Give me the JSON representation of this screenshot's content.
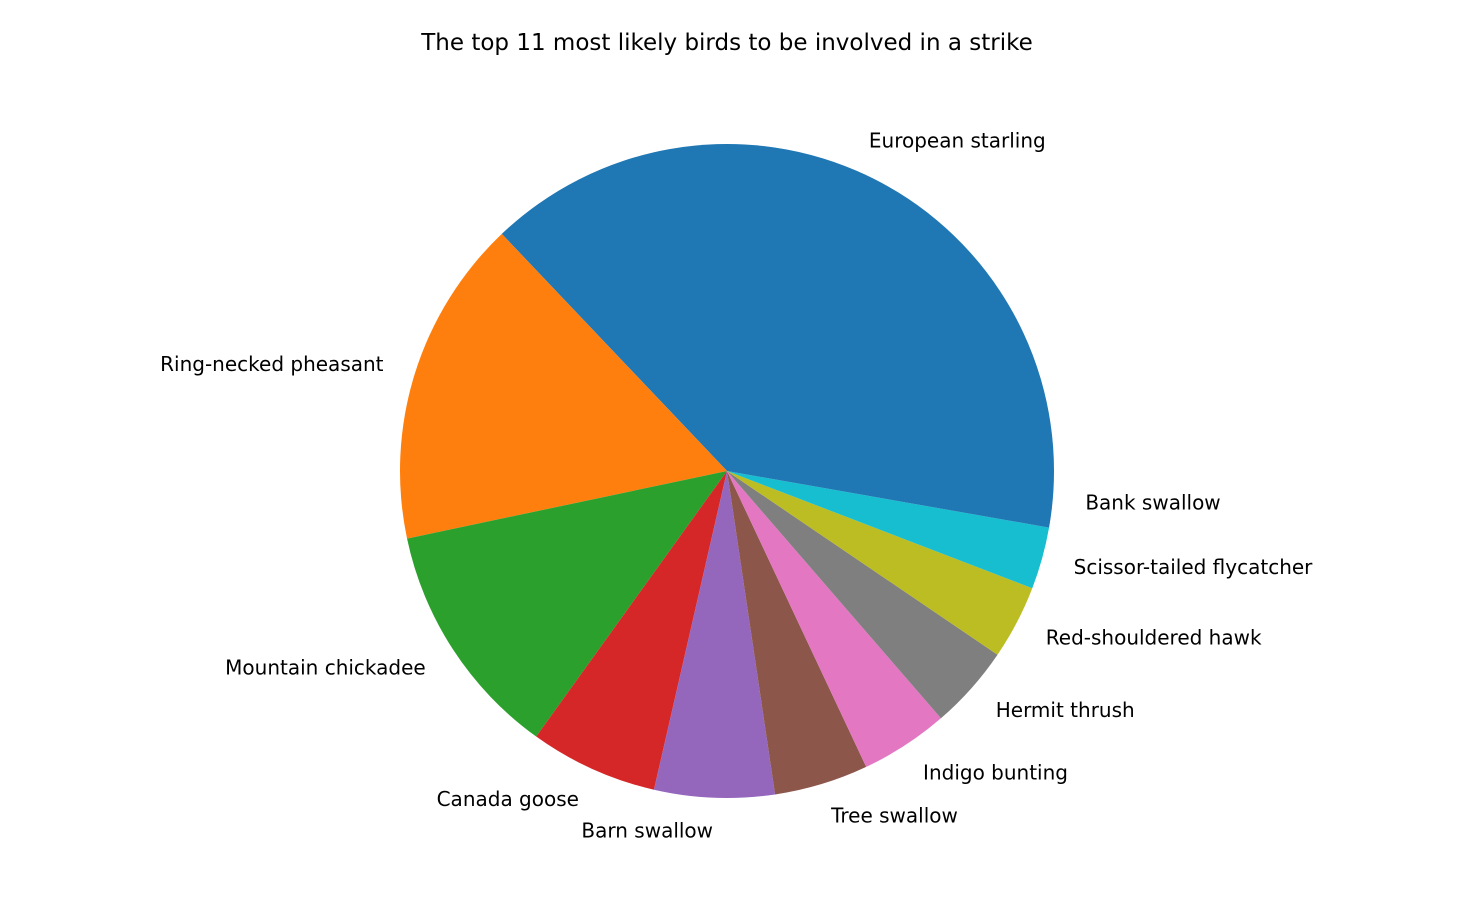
{
  "chart_data": {
    "type": "pie",
    "title": "The top 11 most likely birds to be involved in a strike",
    "start_angle_deg": 0,
    "direction": "counterclockwise",
    "slices": [
      {
        "label": "European starling",
        "value": 37.5,
        "color": "#1f77b4"
      },
      {
        "label": "Ring-necked pheasant",
        "value": 16.4,
        "color": "#ff7f0e"
      },
      {
        "label": "Mountain chickadee",
        "value": 11.9,
        "color": "#2ca02c"
      },
      {
        "label": "Canada goose",
        "value": 6.4,
        "color": "#d62728"
      },
      {
        "label": "Barn swallow",
        "value": 6.0,
        "color": "#9467bd"
      },
      {
        "label": "Tree swallow",
        "value": 4.7,
        "color": "#8c564b"
      },
      {
        "label": "Indigo bunting",
        "value": 4.4,
        "color": "#e377c2"
      },
      {
        "label": "Hermit thrush",
        "value": 4.2,
        "color": "#7f7f7f"
      },
      {
        "label": "Red-shouldered hawk",
        "value": 3.7,
        "color": "#bcbd22"
      },
      {
        "label": "Scissor-tailed flycatcher",
        "value": 3.1,
        "color": "#17becf"
      },
      {
        "label": "Bank swallow",
        "value": 2.8,
        "color": "#1f77b4"
      }
    ]
  }
}
